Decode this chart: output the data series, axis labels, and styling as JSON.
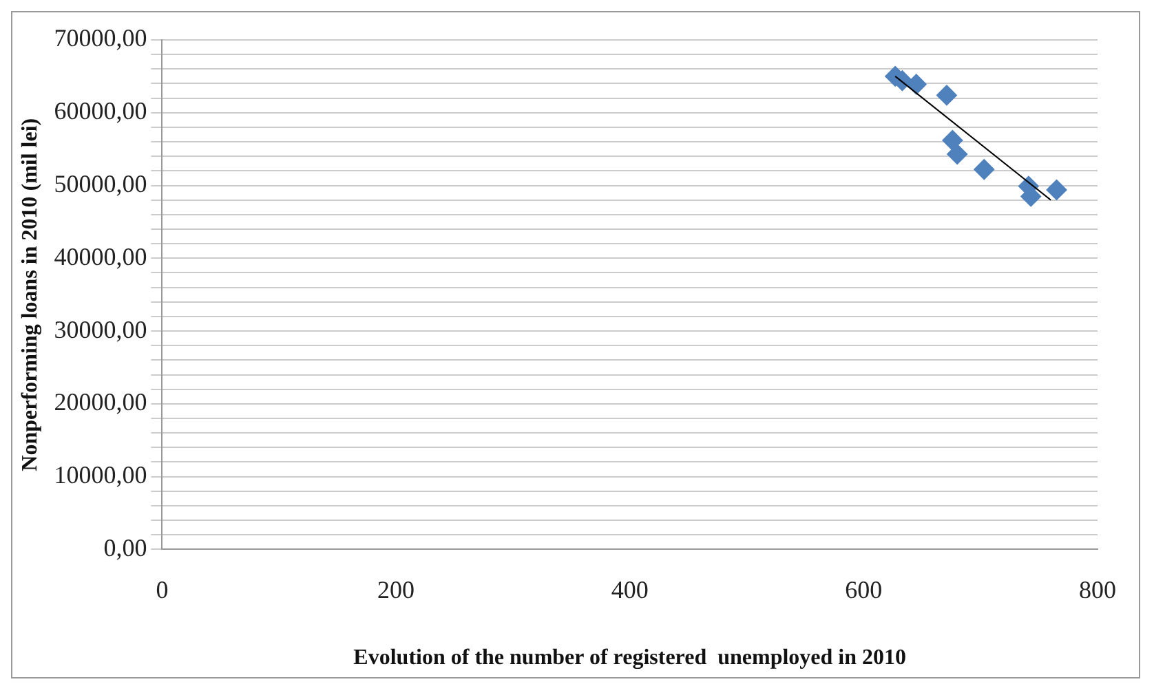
{
  "chart_data": {
    "type": "scatter",
    "xlabel": "Evolution of the number of registered  unemployed in 2010",
    "ylabel": "Nonperforming loans in 2010 (mil lei)",
    "xlim": [
      0,
      800
    ],
    "xticks": [
      0,
      200,
      400,
      600,
      800
    ],
    "ylim": [
      0,
      70000
    ],
    "yticks": [
      {
        "value": 0,
        "label": "0,00"
      },
      {
        "value": 10000,
        "label": "10000,00"
      },
      {
        "value": 20000,
        "label": "20000,00"
      },
      {
        "value": 30000,
        "label": "30000,00"
      },
      {
        "value": 40000,
        "label": "40000,00"
      },
      {
        "value": 50000,
        "label": "50000,00"
      },
      {
        "value": 60000,
        "label": "60000,00"
      },
      {
        "value": 70000,
        "label": "70000,00"
      }
    ],
    "grid": "y",
    "legend": false,
    "series": [
      {
        "marker": "diamond",
        "color": "#4f81bd",
        "x": [
          627,
          633,
          645,
          671,
          676,
          680,
          703,
          741,
          743,
          765
        ],
        "values": [
          65000,
          64400,
          63900,
          62400,
          56200,
          54300,
          52200,
          49900,
          48500,
          49400
        ]
      },
      {
        "type": "line",
        "marker": "none",
        "color": "#000000",
        "x": [
          627,
          760
        ],
        "values": [
          65000,
          48000
        ]
      }
    ]
  }
}
